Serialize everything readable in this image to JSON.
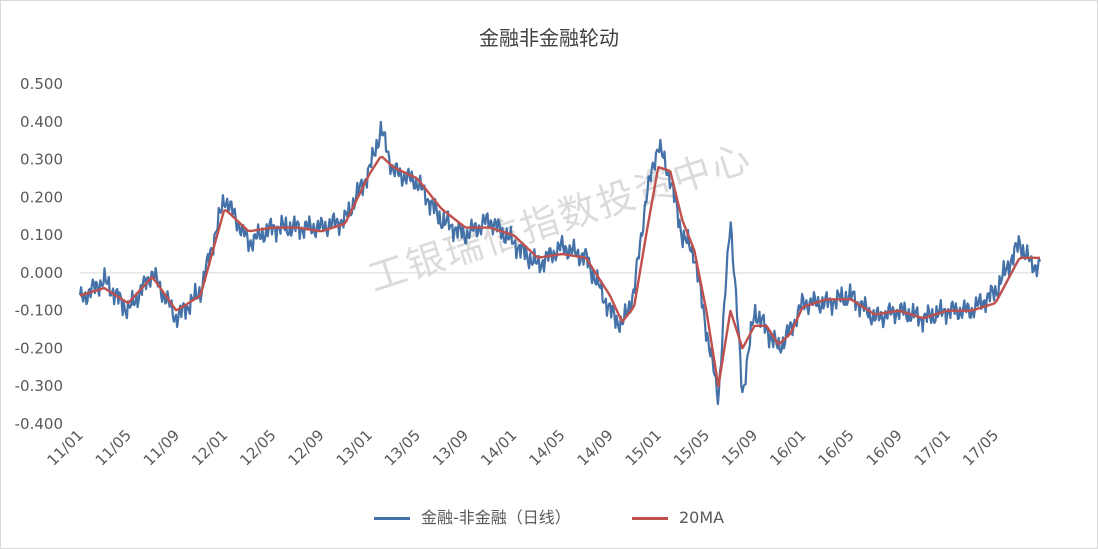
{
  "chart_data": {
    "type": "line",
    "title": "金融非金融轮动",
    "ylim": [
      -0.4,
      0.5
    ],
    "yticks": [
      "0.500",
      "0.400",
      "0.300",
      "0.200",
      "0.100",
      "0.000",
      "-0.100",
      "-0.200",
      "-0.300",
      "-0.400"
    ],
    "x_tick_labels": [
      "11/01",
      "11/05",
      "11/09",
      "12/01",
      "12/05",
      "12/09",
      "13/01",
      "13/05",
      "13/09",
      "14/01",
      "14/05",
      "14/09",
      "15/01",
      "15/05",
      "15/09",
      "16/01",
      "16/05",
      "16/09",
      "17/01",
      "17/05"
    ],
    "x_months": [
      "2011-01",
      "2011-03",
      "2011-05",
      "2011-07",
      "2011-09",
      "2011-11",
      "2012-01",
      "2012-03",
      "2012-05",
      "2012-07",
      "2012-09",
      "2012-11",
      "2013-01",
      "2013-02",
      "2013-03",
      "2013-05",
      "2013-07",
      "2013-09",
      "2013-11",
      "2014-01",
      "2014-03",
      "2014-05",
      "2014-07",
      "2014-09",
      "2014-10",
      "2014-11",
      "2014-12",
      "2015-01",
      "2015-02",
      "2015-03",
      "2015-04",
      "2015-05",
      "2015-06",
      "2015-07",
      "2015-08",
      "2015-09",
      "2015-10",
      "2015-11",
      "2015-12",
      "2016-01",
      "2016-03",
      "2016-05",
      "2016-07",
      "2016-09",
      "2016-11",
      "2017-01",
      "2017-03",
      "2017-05",
      "2017-07",
      "2017-08"
    ],
    "grid": false,
    "legend_position": "bottom",
    "watermark": "工银瑞信指数投资中心",
    "series": [
      {
        "name": "金融-非金融（日线）",
        "color": "#4472a8",
        "values": [
          -0.07,
          -0.02,
          -0.1,
          0.0,
          -0.12,
          -0.05,
          0.2,
          0.08,
          0.12,
          0.12,
          0.12,
          0.14,
          0.27,
          0.38,
          0.27,
          0.24,
          0.14,
          0.1,
          0.14,
          0.08,
          0.02,
          0.07,
          0.04,
          -0.1,
          -0.14,
          -0.05,
          0.2,
          0.34,
          0.25,
          0.1,
          0.05,
          -0.15,
          -0.33,
          0.15,
          -0.32,
          -0.1,
          -0.15,
          -0.2,
          -0.15,
          -0.08,
          -0.08,
          -0.06,
          -0.12,
          -0.1,
          -0.12,
          -0.1,
          -0.1,
          -0.05,
          0.08,
          0.02
        ]
      },
      {
        "name": "20MA",
        "color": "#c0504d",
        "values": [
          -0.06,
          -0.04,
          -0.08,
          -0.01,
          -0.1,
          -0.06,
          0.17,
          0.11,
          0.12,
          0.12,
          0.11,
          0.13,
          0.26,
          0.31,
          0.28,
          0.25,
          0.17,
          0.12,
          0.12,
          0.1,
          0.04,
          0.05,
          0.04,
          -0.06,
          -0.13,
          -0.09,
          0.1,
          0.28,
          0.27,
          0.14,
          0.06,
          -0.1,
          -0.3,
          -0.1,
          -0.2,
          -0.14,
          -0.14,
          -0.19,
          -0.16,
          -0.09,
          -0.07,
          -0.07,
          -0.11,
          -0.1,
          -0.12,
          -0.1,
          -0.1,
          -0.08,
          0.04,
          0.04
        ]
      }
    ]
  }
}
